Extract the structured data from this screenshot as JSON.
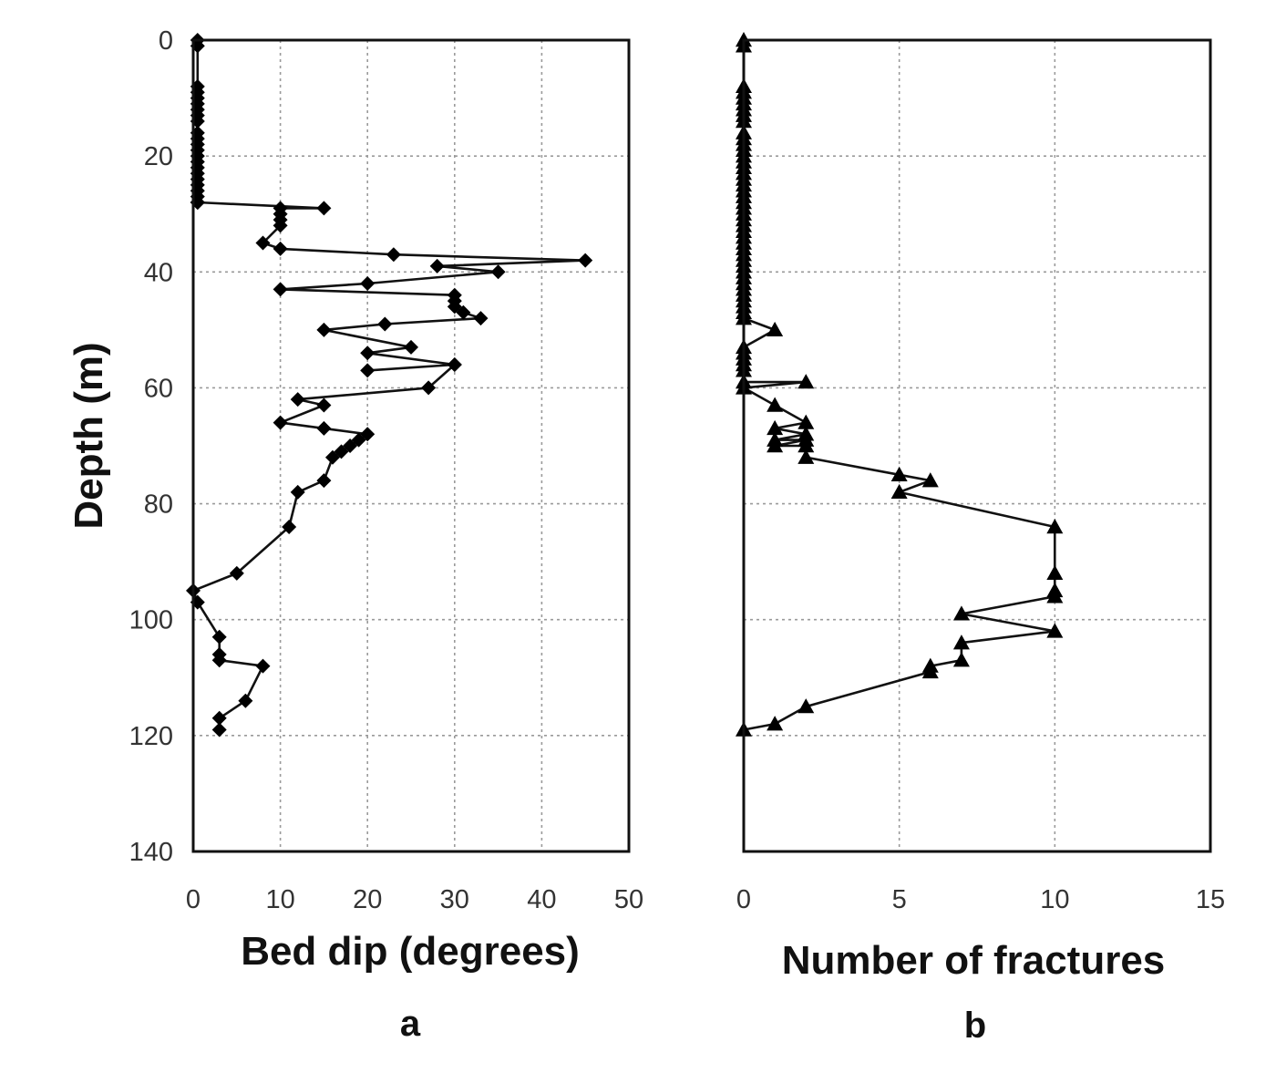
{
  "chart_data": [
    {
      "panel": "a",
      "type": "line",
      "marker": "diamond",
      "ylabel": "Depth (m)",
      "xlabel": "Bed dip (degrees)",
      "xlim": [
        0,
        50
      ],
      "ylim": [
        0,
        140
      ],
      "y_inverted": true,
      "xticks": [
        "0",
        "10",
        "20",
        "30",
        "40",
        "50"
      ],
      "yticks": [
        "0",
        "20",
        "40",
        "60",
        "80",
        "100",
        "120",
        "140"
      ],
      "grid": true,
      "series": [
        {
          "x": [
            0.5,
            0.5,
            0.5,
            0.5,
            0.5,
            0.5,
            0.5,
            0.5,
            0.5,
            0.5,
            0.5,
            0.5,
            0.5,
            0.5,
            0.5,
            0.5,
            0.5,
            0.5,
            0.5,
            0.5,
            0.5,
            0.5,
            0.5,
            0.5,
            0.5,
            0.5,
            15,
            10,
            10,
            10,
            10,
            8,
            10,
            23,
            45,
            28,
            35,
            20,
            10,
            30,
            30,
            30,
            31,
            33,
            22,
            15,
            25,
            20,
            30,
            20,
            30,
            27,
            12,
            15,
            10,
            15,
            20,
            19,
            18,
            17,
            16,
            15,
            12,
            11,
            5,
            0,
            0.5,
            3,
            3,
            3,
            8,
            6,
            3,
            3
          ],
          "y": [
            0,
            1,
            8,
            9,
            10,
            11,
            12,
            13,
            14,
            16,
            17,
            18,
            19,
            20,
            21,
            22,
            23,
            24,
            25,
            26,
            27,
            28,
            28,
            28,
            28,
            28,
            29,
            29,
            30,
            31,
            32,
            35,
            36,
            37,
            38,
            39,
            40,
            42,
            43,
            44,
            45,
            46,
            47,
            48,
            49,
            50,
            53,
            54,
            56,
            57,
            56,
            60,
            62,
            63,
            66,
            67,
            68,
            69,
            70,
            71,
            72,
            76,
            78,
            84,
            92,
            95,
            97,
            103,
            106,
            107,
            108,
            114,
            117,
            119
          ]
        }
      ]
    },
    {
      "panel": "b",
      "type": "line",
      "marker": "triangle",
      "ylabel": "",
      "xlabel": "Number of fractures",
      "xlim": [
        0,
        15
      ],
      "ylim": [
        0,
        140
      ],
      "y_inverted": true,
      "xticks": [
        "0",
        "5",
        "10",
        "15"
      ],
      "yticks": [],
      "grid": true,
      "series": [
        {
          "x": [
            0,
            0,
            0,
            0,
            0,
            0,
            0,
            0,
            0,
            0,
            0,
            0,
            0,
            0,
            0,
            0,
            0,
            0,
            0,
            0,
            0,
            0,
            0,
            0,
            0,
            0,
            0,
            0,
            0,
            0,
            0,
            0,
            0,
            0,
            0,
            0,
            0,
            0,
            0,
            0,
            0,
            0,
            1,
            0,
            0,
            0,
            0,
            0,
            0,
            2,
            0,
            1,
            2,
            1,
            2,
            1,
            2,
            1,
            2,
            2,
            5,
            6,
            5,
            10,
            10,
            10,
            10,
            7,
            10,
            7,
            7,
            6,
            6,
            2,
            1,
            0
          ],
          "y": [
            0,
            1,
            8,
            9,
            10,
            11,
            12,
            13,
            14,
            16,
            17,
            18,
            19,
            20,
            21,
            22,
            23,
            24,
            25,
            26,
            27,
            28,
            29,
            30,
            31,
            32,
            33,
            34,
            35,
            36,
            37,
            38,
            39,
            40,
            41,
            42,
            43,
            44,
            45,
            46,
            47,
            48,
            50,
            53,
            54,
            55,
            56,
            57,
            59,
            59,
            60,
            63,
            66,
            67,
            68,
            69,
            69,
            70,
            70,
            72,
            75,
            76,
            78,
            84,
            92,
            95,
            96,
            99,
            102,
            104,
            107,
            108,
            109,
            115,
            118,
            119
          ]
        }
      ]
    }
  ],
  "labels": {
    "panel_a": "a",
    "panel_b": "b"
  }
}
